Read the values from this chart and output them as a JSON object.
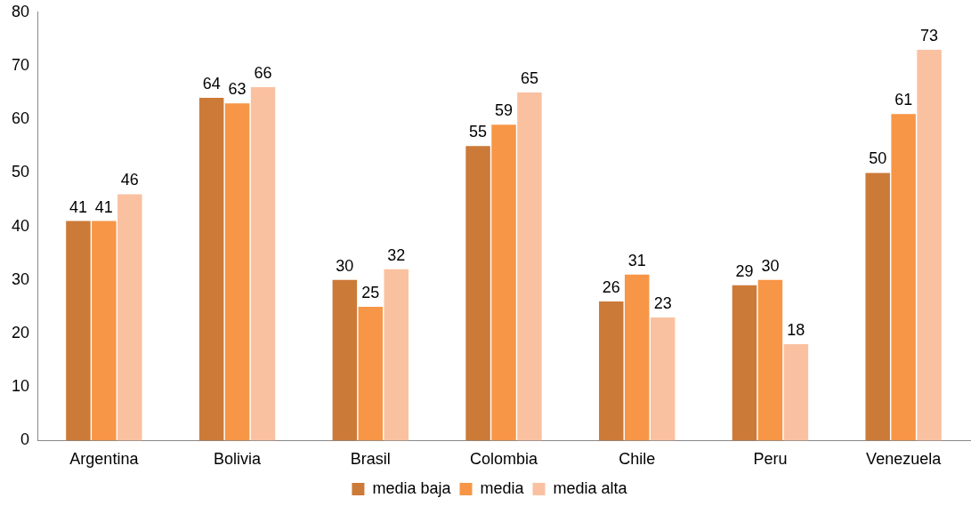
{
  "chart_data": {
    "type": "bar",
    "categories": [
      "Argentina",
      "Bolivia",
      "Brasil",
      "Colombia",
      "Chile",
      "Peru",
      "Venezuela"
    ],
    "series": [
      {
        "name": "media baja",
        "color": "#cc7a38",
        "values": [
          41,
          64,
          30,
          55,
          26,
          29,
          50
        ]
      },
      {
        "name": "media",
        "color": "#f79646",
        "values": [
          41,
          63,
          25,
          59,
          31,
          30,
          61
        ]
      },
      {
        "name": "media alta",
        "color": "#fac1a1",
        "values": [
          46,
          66,
          32,
          65,
          23,
          18,
          73
        ]
      }
    ],
    "ylim": [
      0,
      80
    ],
    "yticks": [
      0,
      10,
      20,
      30,
      40,
      50,
      60,
      70,
      80
    ],
    "grid": false,
    "legend": "bottom",
    "data_labels": true
  }
}
